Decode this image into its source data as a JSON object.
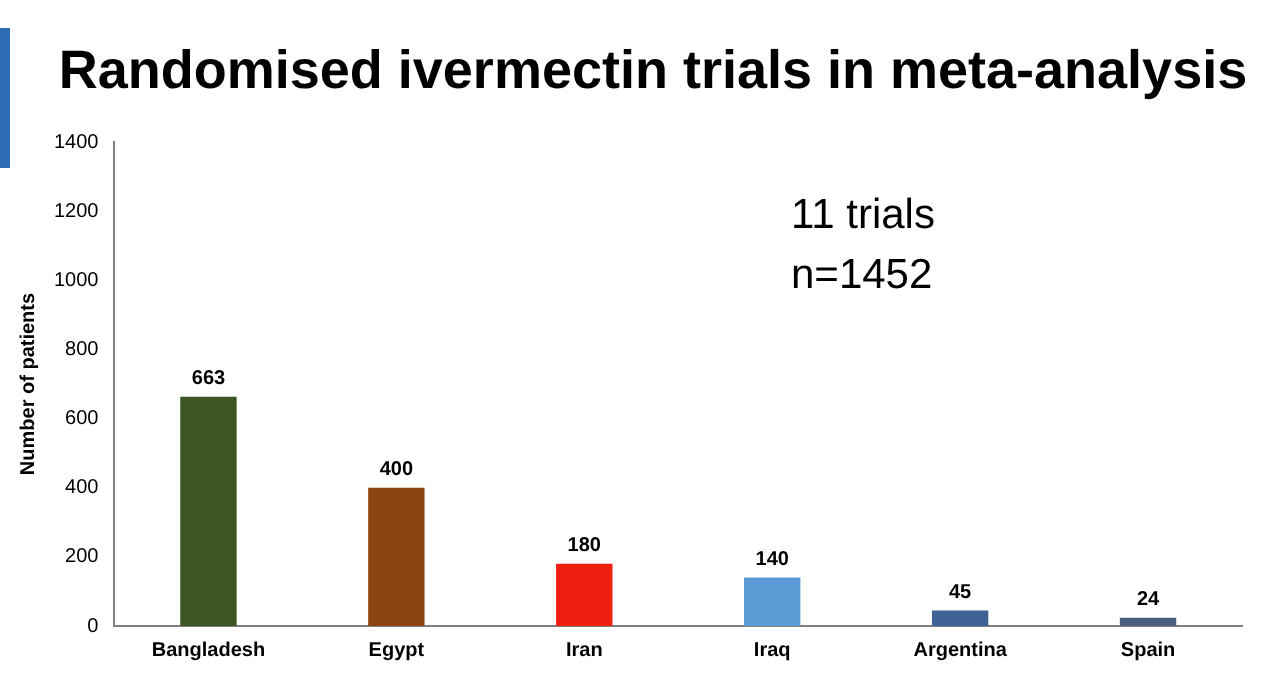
{
  "chart_data": {
    "type": "bar",
    "title": "Randomised ivermectin trials in meta-analysis",
    "ylabel": "Number of patients",
    "categories": [
      "Bangladesh",
      "Egypt",
      "Iran",
      "Iraq",
      "Argentina",
      "Spain"
    ],
    "values": [
      663,
      400,
      180,
      140,
      45,
      24
    ],
    "colors": [
      "#3b5525",
      "#8b4513",
      "#f01e0e",
      "#5b9bd5",
      "#3f6394",
      "#4a5f7d"
    ],
    "ylim": [
      0,
      1400
    ],
    "yticks": [
      0,
      200,
      400,
      600,
      800,
      1000,
      1200,
      1400
    ],
    "grid": false,
    "legend": false,
    "data_labels": true,
    "annotations": [
      "11 trials",
      "n=1452"
    ]
  }
}
